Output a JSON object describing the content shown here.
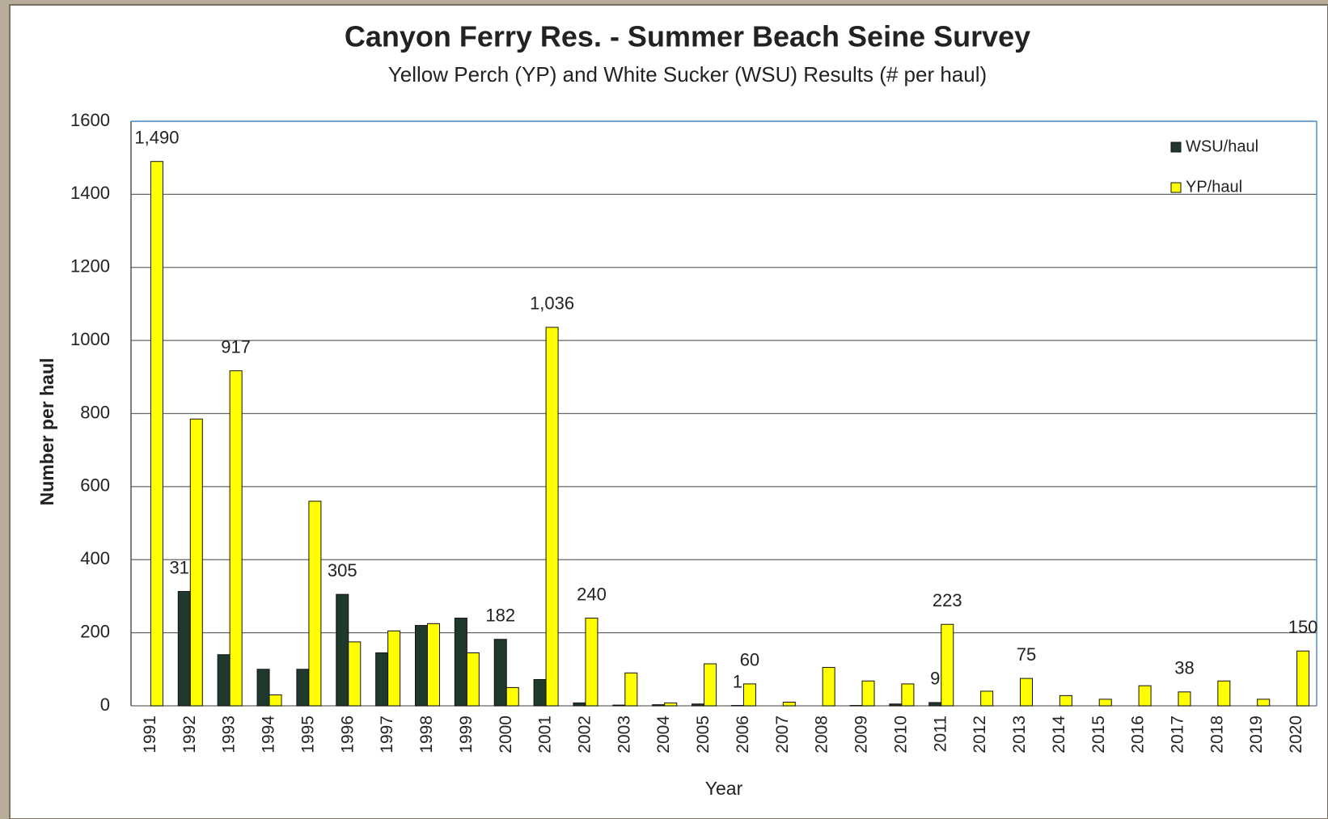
{
  "chart_data": {
    "type": "bar",
    "title": "Canyon Ferry Res. - Summer Beach Seine Survey",
    "subtitle": "Yellow Perch (YP) and White Sucker (WSU) Results (# per haul)",
    "x_label": "Year",
    "y_label": "Number  per haul",
    "categories": [
      "1991",
      "1992",
      "1993",
      "1994",
      "1995",
      "1996",
      "1997",
      "1998",
      "1999",
      "2000",
      "2001",
      "2002",
      "2003",
      "2004",
      "2005",
      "2006",
      "2007",
      "2008",
      "2009",
      "2010",
      "2011",
      "2012",
      "2013",
      "2014",
      "2015",
      "2016",
      "2017",
      "2018",
      "2019",
      "2020"
    ],
    "series": [
      {
        "name": "WSU/haul",
        "color": "#1f3a2c",
        "values": [
          0,
          313,
          140,
          100,
          100,
          305,
          145,
          220,
          240,
          182,
          72,
          8,
          2,
          3,
          5,
          1,
          0,
          0,
          1,
          5,
          9,
          0,
          0,
          0,
          0,
          0,
          0,
          0,
          0,
          0
        ],
        "value_labels": [
          null,
          "313",
          null,
          null,
          null,
          "305",
          null,
          null,
          null,
          "182",
          null,
          null,
          null,
          null,
          null,
          "1",
          null,
          null,
          null,
          null,
          "9",
          null,
          null,
          null,
          null,
          null,
          null,
          null,
          null,
          null
        ]
      },
      {
        "name": "YP/haul",
        "color": "#ffff00",
        "values": [
          1490,
          785,
          917,
          30,
          560,
          175,
          205,
          225,
          145,
          50,
          1036,
          240,
          90,
          8,
          115,
          60,
          10,
          105,
          68,
          60,
          223,
          40,
          75,
          28,
          18,
          55,
          38,
          68,
          18,
          150
        ],
        "value_labels": [
          "1,490",
          null,
          "917",
          null,
          null,
          null,
          null,
          null,
          null,
          null,
          "1,036",
          "240",
          null,
          null,
          null,
          "60",
          null,
          null,
          null,
          null,
          "223",
          null,
          "75",
          null,
          null,
          null,
          "38",
          null,
          null,
          "150"
        ]
      }
    ],
    "ylim": [
      0,
      1600
    ],
    "yticks": [
      0,
      200,
      400,
      600,
      800,
      1000,
      1200,
      1400,
      1600
    ],
    "grid": true,
    "legend": "top-right"
  }
}
